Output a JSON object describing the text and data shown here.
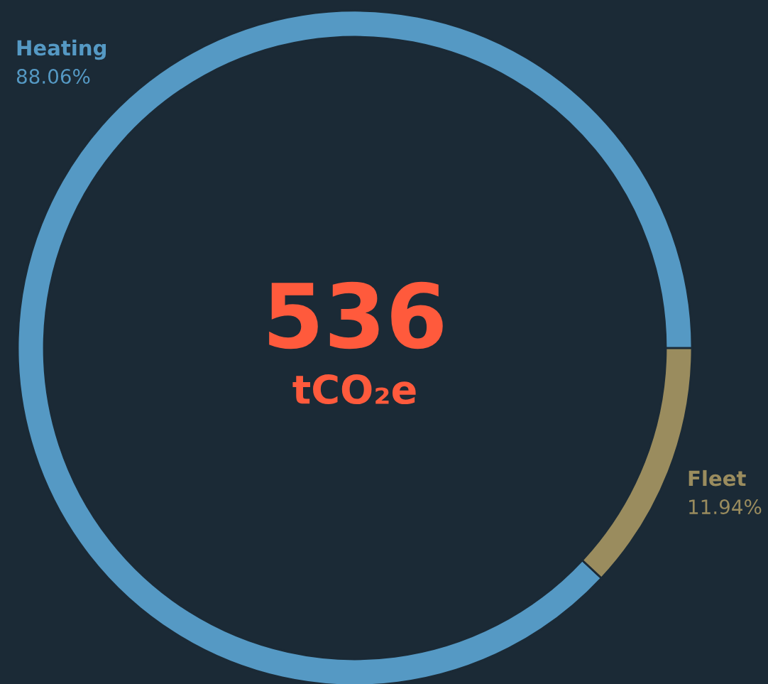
{
  "chart_data": {
    "type": "donut",
    "categories": [
      "Heating",
      "Fleet"
    ],
    "values": [
      88.06,
      11.94
    ],
    "value_labels": [
      "88.06%",
      "11.94%"
    ],
    "colors": [
      "#5599c4",
      "#9a8c5e"
    ],
    "annotations": [
      "536",
      "tCO₂e"
    ]
  }
}
